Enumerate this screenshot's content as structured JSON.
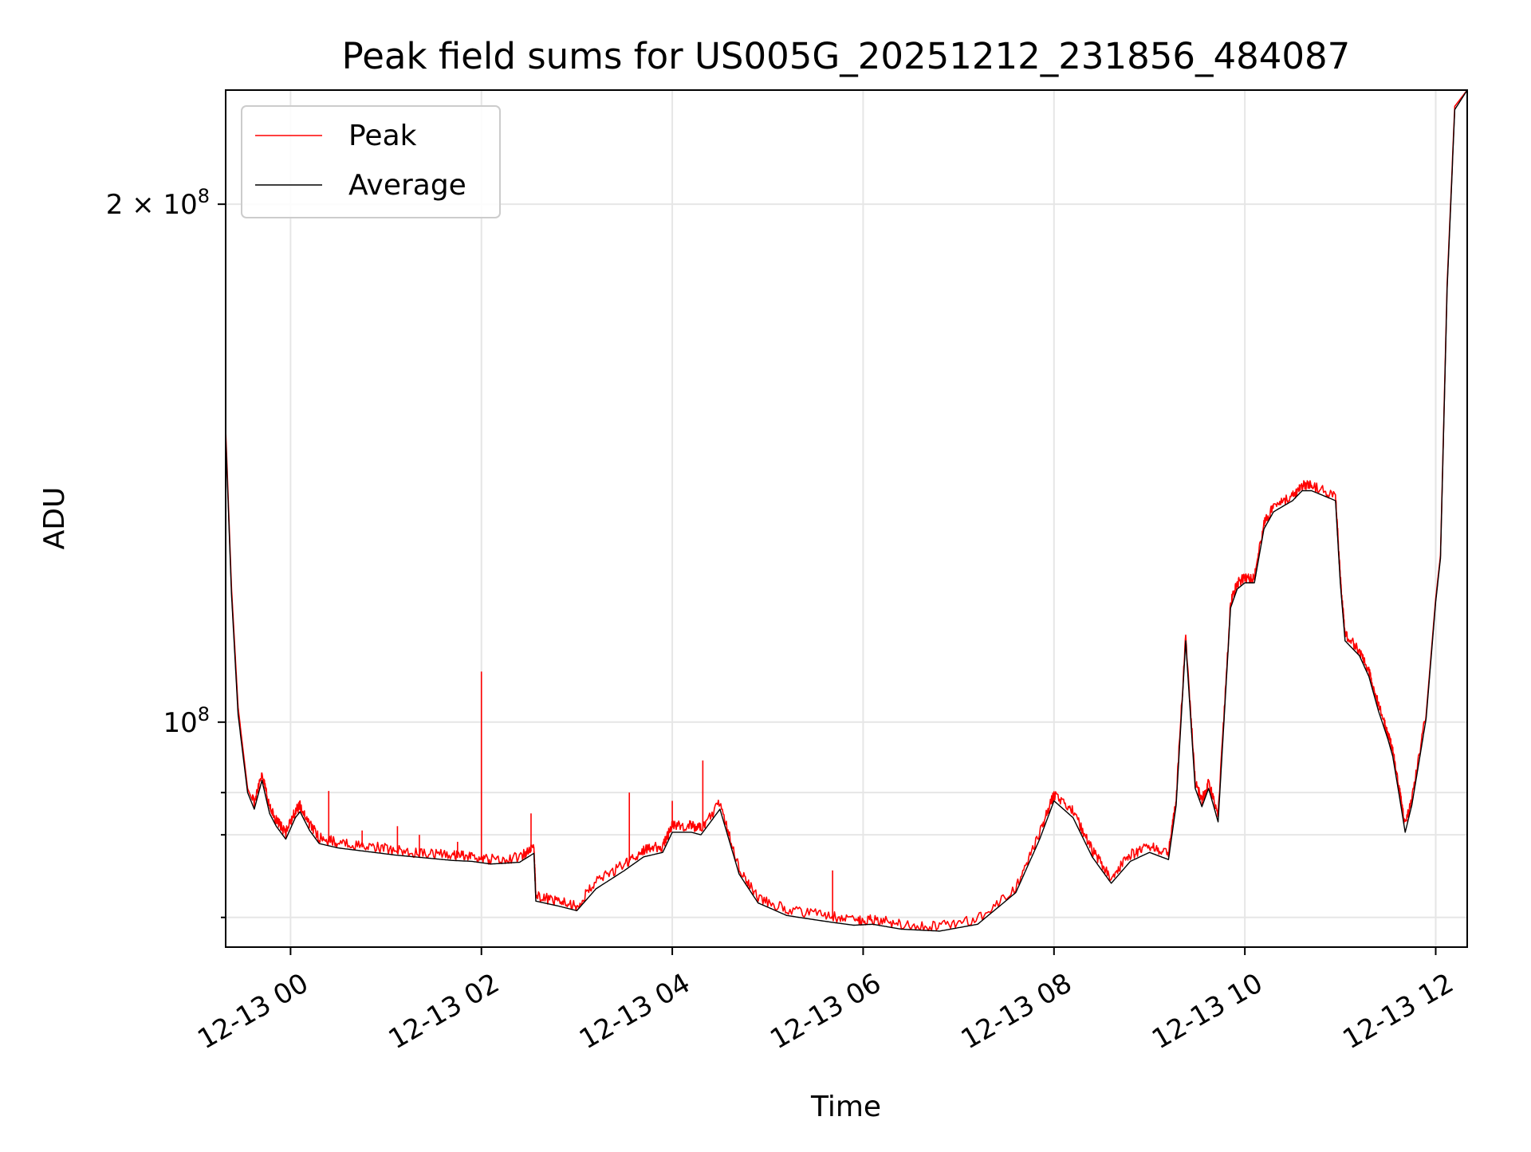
{
  "chart_data": {
    "type": "line",
    "title": "Peak field sums for US005G_20251212_231856_484087",
    "xlabel": "Time",
    "ylabel": "ADU",
    "x_unit": "hours",
    "y_scale": "log",
    "xlim": [
      -0.68,
      12.33
    ],
    "ylim": [
      74000000,
      233000000
    ],
    "grid": true,
    "legend_position": "top-left",
    "x_ticks": [
      {
        "value": 0,
        "label": "12-13 00"
      },
      {
        "value": 2,
        "label": "12-13 02"
      },
      {
        "value": 4,
        "label": "12-13 04"
      },
      {
        "value": 6,
        "label": "12-13 06"
      },
      {
        "value": 8,
        "label": "12-13 08"
      },
      {
        "value": 10,
        "label": "12-13 10"
      },
      {
        "value": 12,
        "label": "12-13 12"
      }
    ],
    "y_ticks_major": [
      {
        "value": 100000000,
        "base": "10",
        "exp": "8",
        "mant": ""
      },
      {
        "value": 200000000,
        "base": "10",
        "exp": "8",
        "mant": "2 × "
      }
    ],
    "y_ticks_minor": [
      77000000,
      86000000,
      91000000
    ],
    "series": [
      {
        "name": "Peak",
        "color": "#ff0000",
        "x": [
          -0.68,
          -0.62,
          -0.55,
          -0.45,
          -0.38,
          -0.3,
          -0.22,
          -0.15,
          -0.05,
          0.05,
          0.1,
          0.2,
          0.3,
          0.5,
          0.8,
          1.1,
          1.4,
          1.7,
          1.9,
          2.1,
          2.4,
          2.55,
          2.57,
          2.8,
          3.0,
          3.2,
          3.5,
          3.7,
          3.9,
          4.0,
          4.2,
          4.3,
          4.5,
          4.7,
          4.9,
          5.2,
          5.6,
          5.9,
          6.1,
          6.4,
          6.8,
          7.2,
          7.6,
          7.85,
          8.0,
          8.2,
          8.4,
          8.6,
          8.8,
          9.0,
          9.2,
          9.28,
          9.38,
          9.48,
          9.55,
          9.62,
          9.72,
          9.85,
          9.92,
          10.0,
          10.1,
          10.2,
          10.3,
          10.5,
          10.6,
          10.7,
          10.95,
          11.0,
          11.05,
          11.2,
          11.3,
          11.4,
          11.5,
          11.55,
          11.62,
          11.68,
          11.75,
          11.9,
          12.0,
          12.05,
          12.12,
          12.2,
          12.33
        ],
        "y": [
          148000000,
          120000000,
          102000000,
          91500000,
          89500000,
          93000000,
          89000000,
          87500000,
          86000000,
          88500000,
          89200000,
          87000000,
          85400000,
          84900000,
          84500000,
          84000000,
          83700000,
          83400000,
          83300000,
          83000000,
          83200000,
          84300000,
          79000000,
          78500000,
          78000000,
          80500000,
          82500000,
          84000000,
          84500000,
          86800000,
          86800000,
          86500000,
          89500000,
          82000000,
          78900000,
          77600000,
          77000000,
          76500000,
          76600000,
          76100000,
          75900000,
          76600000,
          80000000,
          86000000,
          90500000,
          88500000,
          84000000,
          81000000,
          83500000,
          84500000,
          83700000,
          90000000,
          112000000,
          92000000,
          89800000,
          92000000,
          88000000,
          117000000,
          120000000,
          121000000,
          121000000,
          130000000,
          133000000,
          135000000,
          136800000,
          136800000,
          135000000,
          121000000,
          112000000,
          109800000,
          106800000,
          102000000,
          98200000,
          96000000,
          91000000,
          86800000,
          90000000,
          101000000,
          118000000,
          125000000,
          180000000,
          228000000,
          233000000
        ]
      },
      {
        "name": "Average",
        "color": "#000000",
        "x": [
          -0.68,
          -0.62,
          -0.55,
          -0.45,
          -0.38,
          -0.3,
          -0.22,
          -0.15,
          -0.05,
          0.05,
          0.1,
          0.2,
          0.3,
          0.5,
          0.8,
          1.1,
          1.4,
          1.7,
          1.9,
          2.1,
          2.4,
          2.55,
          2.57,
          2.8,
          3.0,
          3.2,
          3.5,
          3.7,
          3.9,
          4.0,
          4.2,
          4.3,
          4.5,
          4.7,
          4.9,
          5.2,
          5.6,
          5.9,
          6.1,
          6.4,
          6.8,
          7.2,
          7.6,
          7.85,
          8.0,
          8.2,
          8.4,
          8.6,
          8.8,
          9.0,
          9.2,
          9.28,
          9.38,
          9.48,
          9.55,
          9.62,
          9.72,
          9.85,
          9.92,
          10.0,
          10.1,
          10.2,
          10.3,
          10.5,
          10.6,
          10.7,
          10.95,
          11.0,
          11.05,
          11.2,
          11.3,
          11.4,
          11.5,
          11.55,
          11.62,
          11.68,
          11.75,
          11.9,
          12.0,
          12.05,
          12.12,
          12.2,
          12.33
        ],
        "y": [
          147000000,
          119000000,
          101000000,
          91000000,
          89000000,
          92500000,
          88500000,
          87000000,
          85500000,
          88000000,
          88700000,
          86500000,
          85000000,
          84500000,
          84100000,
          83700000,
          83400000,
          83100000,
          83000000,
          82700000,
          82900000,
          83900000,
          78700000,
          78200000,
          77700000,
          80000000,
          82000000,
          83500000,
          84000000,
          86300000,
          86300000,
          86000000,
          89000000,
          81600000,
          78500000,
          77200000,
          76600000,
          76200000,
          76300000,
          75800000,
          75600000,
          76300000,
          79600000,
          85500000,
          90000000,
          88000000,
          83500000,
          80600000,
          83000000,
          84000000,
          83200000,
          89500000,
          111500000,
          91500000,
          89300000,
          91500000,
          87500000,
          116500000,
          119500000,
          120500000,
          120500000,
          129500000,
          132500000,
          134500000,
          136300000,
          136300000,
          134500000,
          120500000,
          111500000,
          109300000,
          106300000,
          101500000,
          97700000,
          95500000,
          90500000,
          86300000,
          89500000,
          100500000,
          117500000,
          124500000,
          179000000,
          227000000,
          233000000
        ]
      }
    ],
    "spikes": [
      {
        "x": 0.4,
        "y": 91200000
      },
      {
        "x": 0.75,
        "y": 86500000
      },
      {
        "x": 1.12,
        "y": 87000000
      },
      {
        "x": 1.35,
        "y": 86000000
      },
      {
        "x": 1.75,
        "y": 85200000
      },
      {
        "x": 2.0,
        "y": 107000000
      },
      {
        "x": 2.52,
        "y": 88500000
      },
      {
        "x": 3.55,
        "y": 91000000
      },
      {
        "x": 4.0,
        "y": 90000000
      },
      {
        "x": 4.32,
        "y": 95000000
      },
      {
        "x": 5.68,
        "y": 82000000
      }
    ]
  }
}
